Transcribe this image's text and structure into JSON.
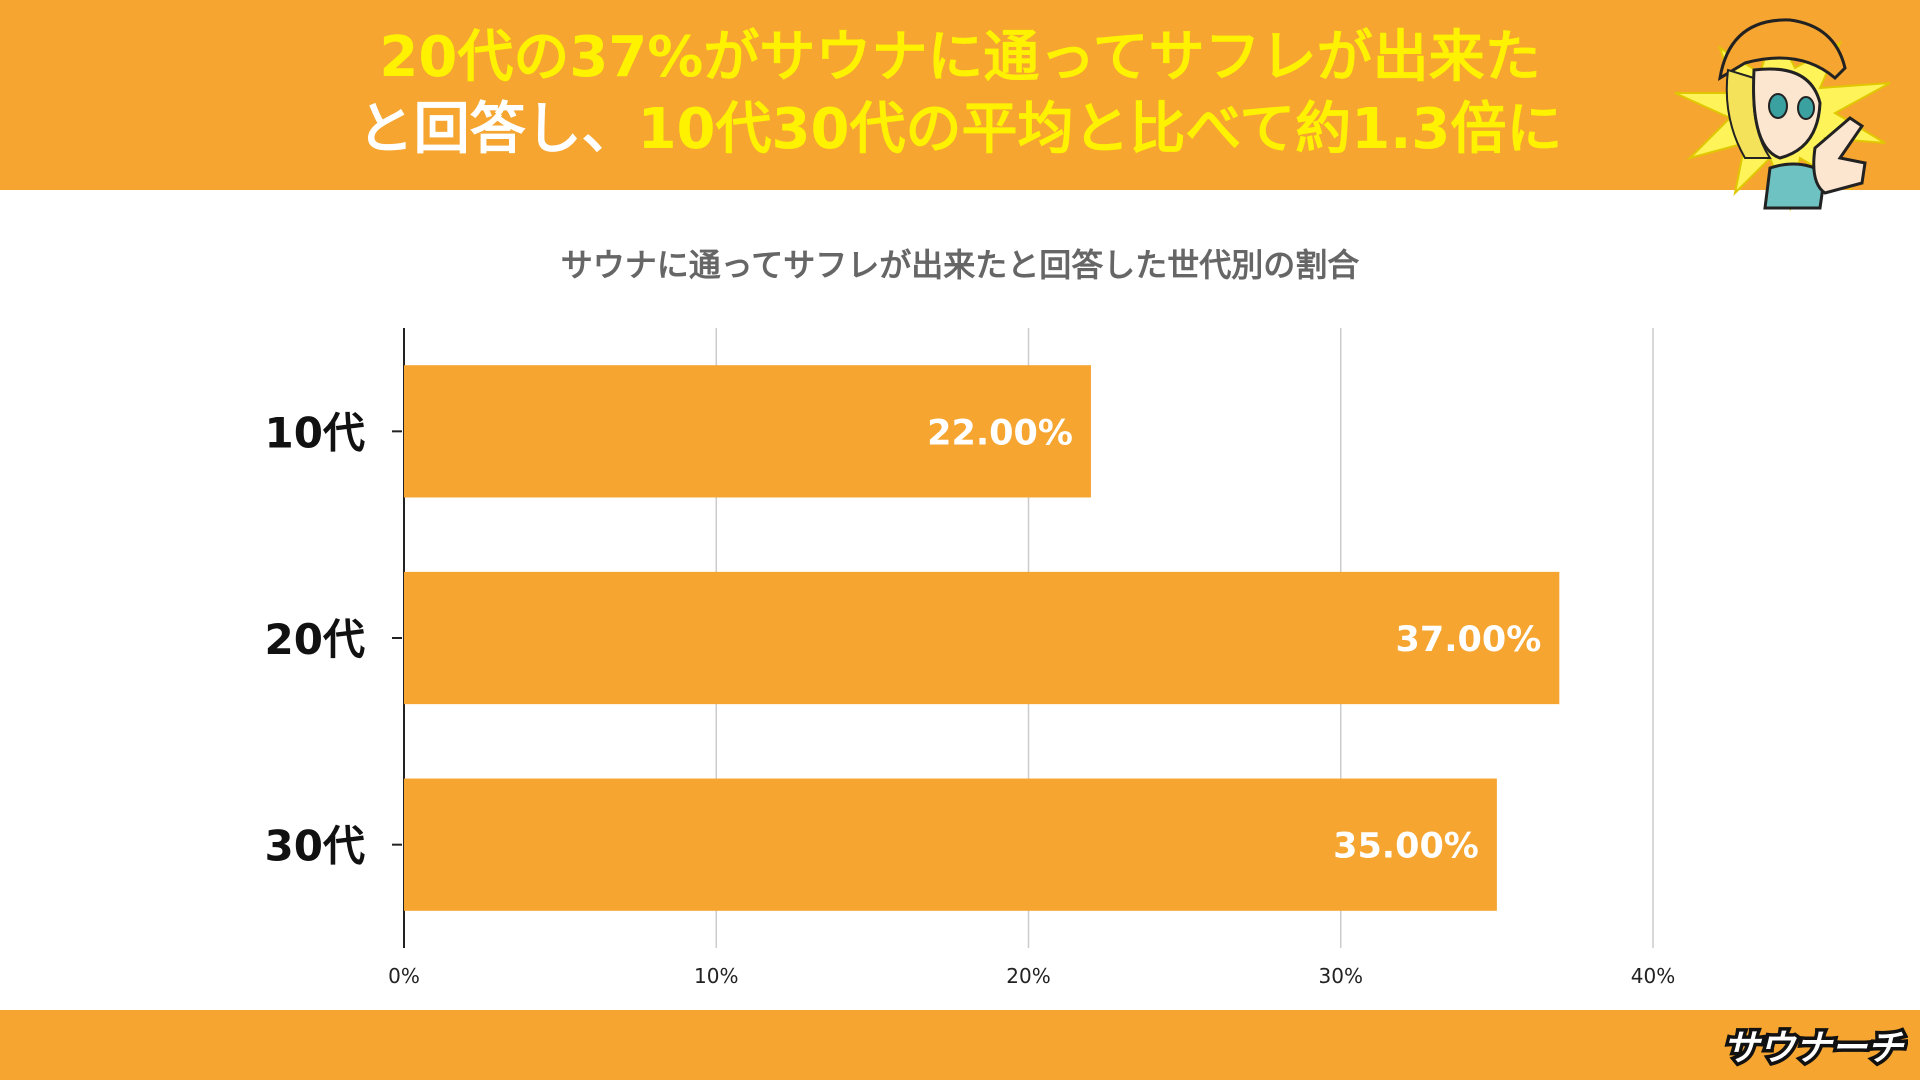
{
  "header": {
    "line1": "20代の37%がサウナに通ってサフレが出来た",
    "line2_white": "と回答し、",
    "line2_yellow": "10代30代の平均と比べて約1.3倍に"
  },
  "colors": {
    "accent": "#f5a530",
    "highlight": "#fff200",
    "bar": "#f5a530",
    "grid": "#cccccc"
  },
  "mascot": {
    "icon": "pointing-girl-mascot"
  },
  "footer": {
    "logo_text": "サウナーチ"
  },
  "chart_data": {
    "type": "bar",
    "orientation": "horizontal",
    "title": "サウナに通ってサフレが出来たと回答した世代別の割合",
    "categories": [
      "10代",
      "20代",
      "30代"
    ],
    "values": [
      22,
      37,
      35
    ],
    "value_labels": [
      "22.00%",
      "37.00%",
      "35.00%"
    ],
    "xlim": [
      0,
      40
    ],
    "xticks": [
      0,
      10,
      20,
      30,
      40
    ],
    "xtick_labels": [
      "0%",
      "10%",
      "20%",
      "30%",
      "40%"
    ],
    "grid": true
  }
}
